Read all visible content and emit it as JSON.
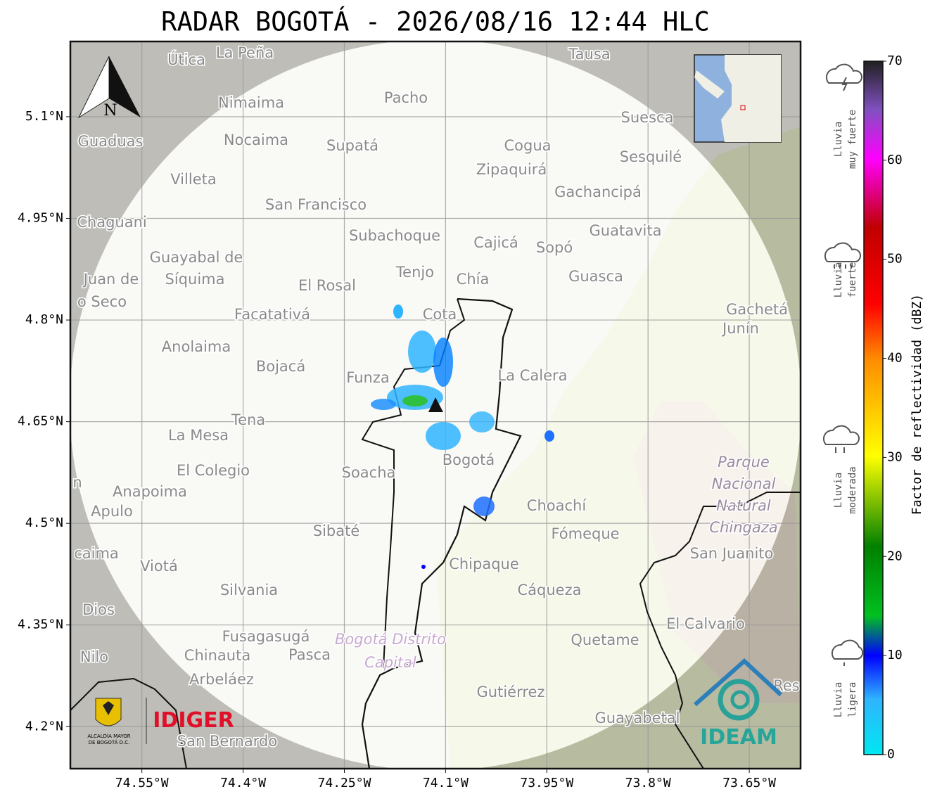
{
  "header": {
    "title": "RADAR BOGOTÁ - 2026/08/16 12:44 HLC"
  },
  "map": {
    "lon_range": [
      -74.656,
      -73.574
    ],
    "lat_range": [
      4.138,
      5.211
    ],
    "lon_ticks": [
      {
        "value": -74.55,
        "label": "74.55°W"
      },
      {
        "value": -74.4,
        "label": "74.4°W"
      },
      {
        "value": -74.25,
        "label": "74.25°W"
      },
      {
        "value": -74.1,
        "label": "74.1°W"
      },
      {
        "value": -73.95,
        "label": "73.95°W"
      },
      {
        "value": -73.8,
        "label": "73.8°W"
      },
      {
        "value": -73.65,
        "label": "73.65°W"
      }
    ],
    "lat_ticks": [
      {
        "value": 5.1,
        "label": "5.1°N"
      },
      {
        "value": 4.95,
        "label": "4.95°N"
      },
      {
        "value": 4.8,
        "label": "4.8°N"
      },
      {
        "value": 4.65,
        "label": "4.65°N"
      },
      {
        "value": 4.5,
        "label": "4.5°N"
      },
      {
        "value": 4.35,
        "label": "4.35°N"
      },
      {
        "value": 4.2,
        "label": "4.2°N"
      }
    ],
    "north_label": "N",
    "places": [
      "La Peña",
      "Útica",
      "Tausa",
      "Pacho",
      "Nimaima",
      "Guaduas",
      "Nocaima",
      "Supatá",
      "Cogua",
      "Suesca",
      "Sesquilé",
      "Zipaquirá",
      "Villeta",
      "Gachancipá",
      "San Francisco",
      "Chaguani",
      "Guatavita",
      "Subachoque",
      "Cajicá",
      "Sopó",
      "Guayabal de",
      "Síquima",
      "Juan de",
      "Tenjo",
      "Chía",
      "Guasca",
      "El Rosal",
      "o Seco",
      "Facatativá",
      "Cota",
      "Gachetá",
      "Junín",
      "Anolaima",
      "Bojacá",
      "Funza",
      "La Calera",
      "Tena",
      "La Mesa",
      "El Colegio",
      "Soacha",
      "Bogotá",
      "Anapoima",
      "Apulo",
      "Choachí",
      "Fómeque",
      "Sibaté",
      "San Juanito",
      "caima",
      "Viotá",
      "Chipaque",
      "Cáqueza",
      "Silvania",
      "Dios",
      "El Calvario",
      "Fusagasugá",
      "Quetame",
      "Nilo",
      "Chinauta",
      "Pasca",
      "Arbeláez",
      "Gutiérrez",
      "Guayabetal",
      "San Bernardo",
      "Res",
      "n"
    ],
    "park": [
      "Parque",
      "Nacional",
      "Natural",
      "Chingaza"
    ],
    "district": [
      "Bogotá Distrito",
      "Capital"
    ]
  },
  "colorbar": {
    "label": "Factor de reflectividad (dBZ)",
    "range": [
      0,
      70
    ],
    "ticks": [
      0,
      10,
      20,
      30,
      40,
      50,
      60,
      70
    ]
  },
  "rain_legend": [
    {
      "line1": "Lluvia",
      "line2": "muy fuerte"
    },
    {
      "line1": "Lluvia",
      "line2": "fuerte"
    },
    {
      "line1": "Lluvia",
      "line2": "moderada"
    },
    {
      "line1": "Lluvia",
      "line2": "ligera"
    }
  ],
  "logos": {
    "alcaldia_1": "ALCALDÍA MAYOR",
    "alcaldia_2": "DE BOGOTÁ D.C.",
    "idiger": "IDIGER",
    "ideam": "IDEAM"
  }
}
